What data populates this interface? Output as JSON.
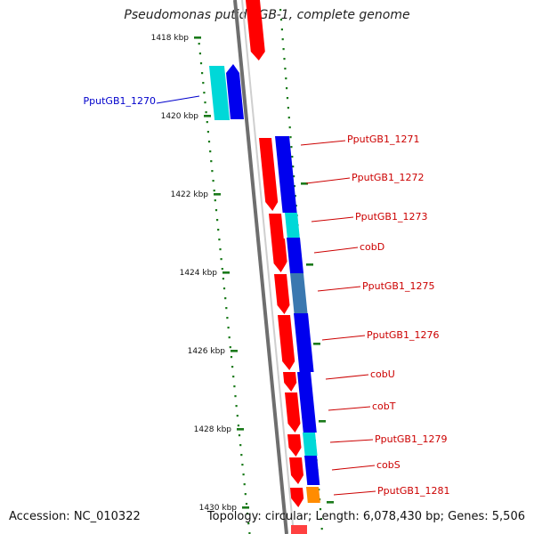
{
  "title": "Pseudomonas putida GB-1, complete genome",
  "footer": {
    "accession": "Accession: NC_010322",
    "topology": "Topology: circular; Length: 6,078,430 bp; Genes: 5,506"
  },
  "colors": {
    "forward_cds": "#ff0000",
    "reverse_cds": "#0000ee",
    "rna": "#00d8d8",
    "mixed": "#3a78b0",
    "other": "#ff8c00",
    "label_fwd": "#cc0000",
    "label_rev": "#0000cc",
    "backbone": "#888888",
    "tick": "#1a7a1a"
  },
  "scale": {
    "unit": "kbp",
    "ticks": [
      {
        "label": "1418 kbp"
      },
      {
        "label": "1420 kbp"
      },
      {
        "label": "1422 kbp"
      },
      {
        "label": "1424 kbp"
      },
      {
        "label": "1426 kbp"
      },
      {
        "label": "1428 kbp"
      },
      {
        "label": "1430 kbp"
      }
    ]
  },
  "genes": [
    {
      "name": "PputGB1_1270"
    },
    {
      "name": "PputGB1_1271"
    },
    {
      "name": "PputGB1_1272"
    },
    {
      "name": "PputGB1_1273"
    },
    {
      "name": "cobD"
    },
    {
      "name": "PputGB1_1275"
    },
    {
      "name": "PputGB1_1276"
    },
    {
      "name": "cobU"
    },
    {
      "name": "cobT"
    },
    {
      "name": "PputGB1_1279"
    },
    {
      "name": "cobS"
    },
    {
      "name": "PputGB1_1281"
    }
  ]
}
